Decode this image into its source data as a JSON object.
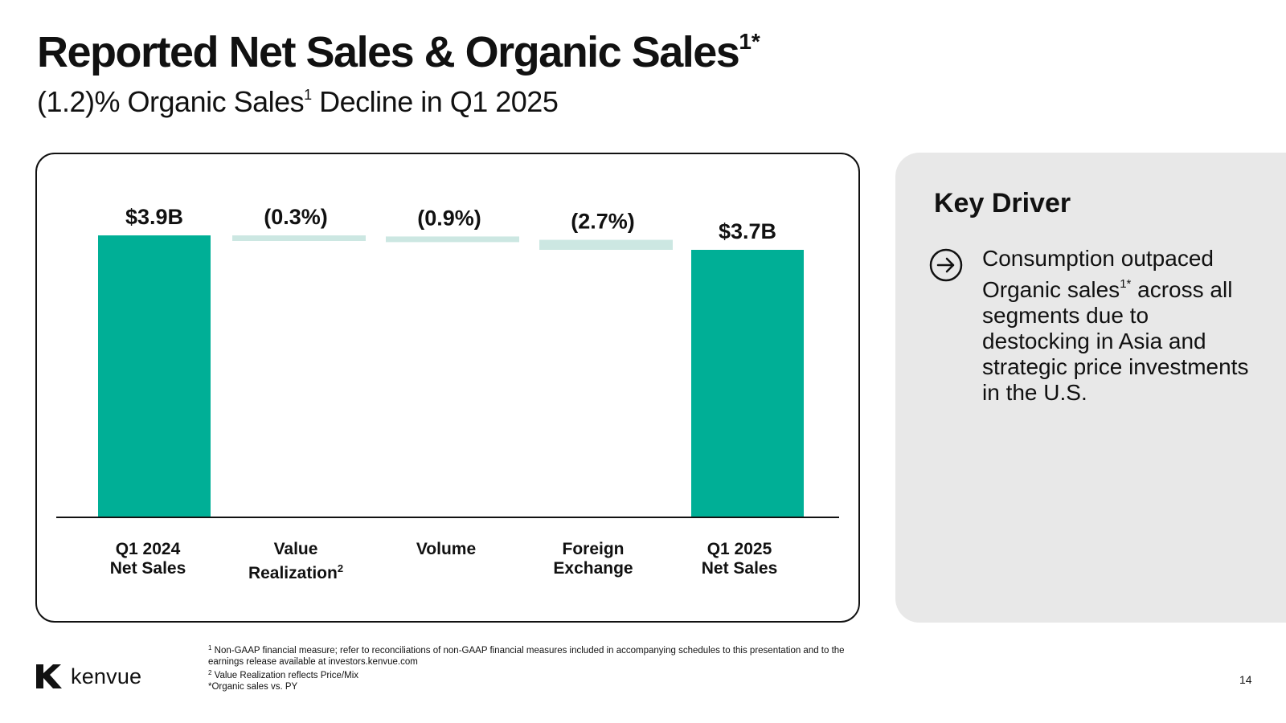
{
  "slide": {
    "title": "Reported Net Sales & Organic Sales",
    "title_sup": "1*",
    "subtitle_pre": "(1.2)% Organic Sales",
    "subtitle_sup": "1",
    "subtitle_post": " Decline in Q1 2025",
    "page_number": "14"
  },
  "chart_data": {
    "type": "bar",
    "subtype": "waterfall",
    "title": "",
    "xlabel": "",
    "ylabel": "",
    "grid": false,
    "categories": [
      "Q1 2024 Net Sales",
      "Value Realization",
      "Volume",
      "Foreign Exchange",
      "Q1 2025 Net Sales"
    ],
    "category_lines": [
      [
        "Q1 2024",
        "Net Sales"
      ],
      [
        "Value",
        "Realization"
      ],
      [
        "Volume"
      ],
      [
        "Foreign",
        "Exchange"
      ],
      [
        "Q1 2025",
        "Net Sales"
      ]
    ],
    "category_sups": [
      "",
      "2",
      "",
      "",
      ""
    ],
    "kinds": [
      "total",
      "delta",
      "delta",
      "delta",
      "total"
    ],
    "values": [
      3.9,
      -0.3,
      -0.9,
      -2.7,
      3.7
    ],
    "value_units": [
      "$B",
      "%",
      "%",
      "%",
      "$B"
    ],
    "data_labels": [
      "$3.9B",
      "(0.3%)",
      "(0.9%)",
      "(2.7%)",
      "$3.7B"
    ],
    "colors": {
      "total": "#00af96",
      "delta": "#cce7e2"
    }
  },
  "key_driver": {
    "title": "Key Driver",
    "icon": "arrow-circle-right-icon",
    "text_pre": "Consumption outpaced Organic sales",
    "text_sup": "1*",
    "text_post": " across all segments due to destocking in Asia and strategic price investments in the U.S."
  },
  "logo": {
    "wordmark": "kenvue"
  },
  "footnotes": [
    {
      "sup": "1",
      "text": " Non-GAAP financial measure; refer to reconciliations of non-GAAP financial measures included in accompanying schedules to this presentation and to the earnings release available at investors.kenvue.com"
    },
    {
      "sup": "2",
      "text": " Value Realization reflects Price/Mix"
    },
    {
      "sup": "",
      "text": "*Organic sales vs. PY"
    }
  ]
}
